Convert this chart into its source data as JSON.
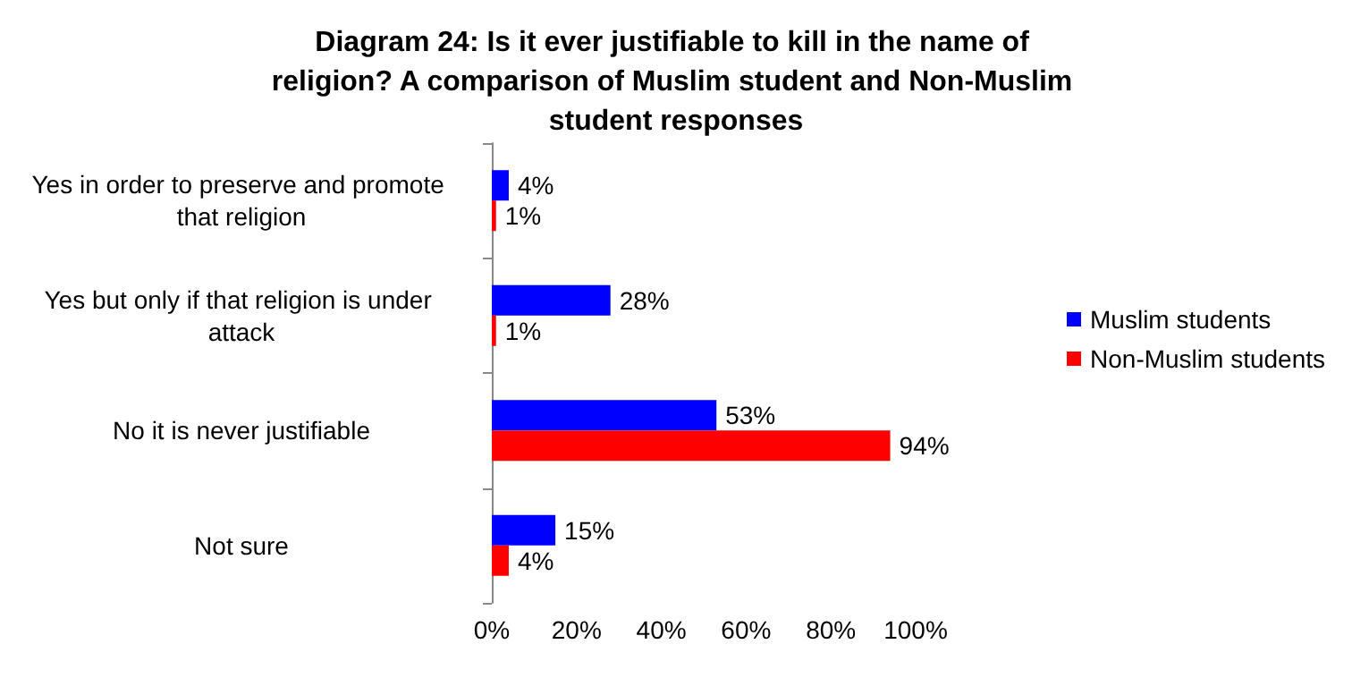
{
  "chart_data": {
    "type": "bar",
    "orientation": "horizontal",
    "title": "Diagram 24: Is it ever justifiable to kill in the name of religion? A comparison of Muslim student and Non-Muslim student responses",
    "categories": [
      "Yes in order to preserve and promote that religion",
      "Yes but only if that religion is under attack",
      "No it is never justifiable",
      "Not sure"
    ],
    "series": [
      {
        "name": "Muslim students",
        "color": "#0000ff",
        "values": [
          4,
          28,
          53,
          15
        ],
        "value_labels": [
          "4%",
          "28%",
          "53%",
          "15%"
        ]
      },
      {
        "name": "Non-Muslim students",
        "color": "#ff0000",
        "values": [
          1,
          1,
          94,
          4
        ],
        "value_labels": [
          "1%",
          "1%",
          "94%",
          "4%"
        ]
      }
    ],
    "xlim": [
      0,
      100
    ],
    "xticks": [
      {
        "value": 0,
        "label": "0%"
      },
      {
        "value": 20,
        "label": "20%"
      },
      {
        "value": 40,
        "label": "40%"
      },
      {
        "value": 60,
        "label": "60%"
      },
      {
        "value": 80,
        "label": "80%"
      },
      {
        "value": 100,
        "label": "100%"
      }
    ],
    "grid": false,
    "legend": "right"
  }
}
